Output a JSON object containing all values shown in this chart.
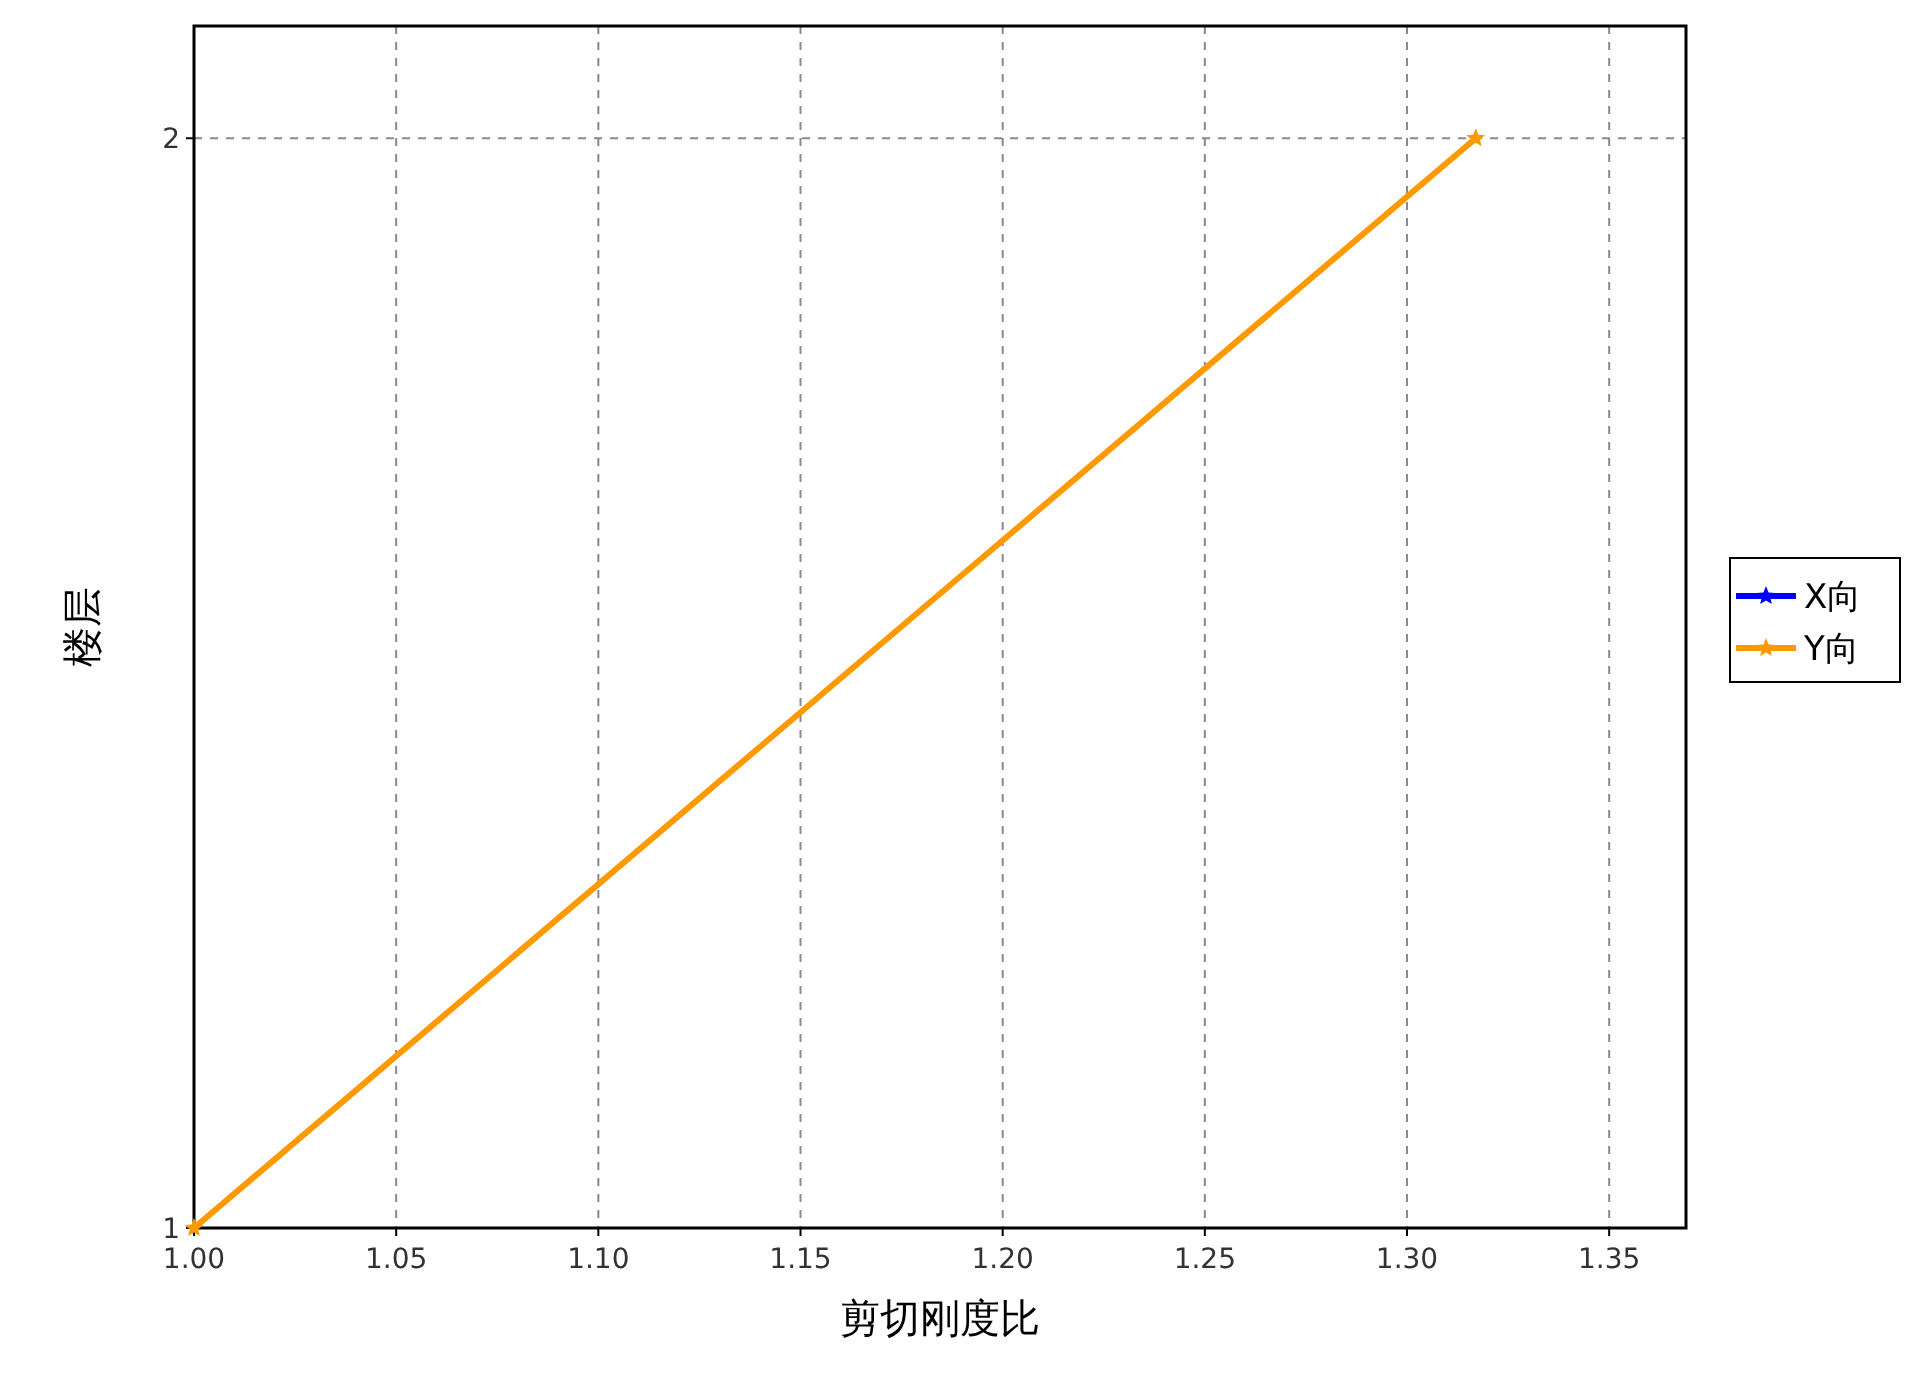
{
  "chart_data": {
    "type": "line",
    "xlabel": "剪切刚度比",
    "ylabel": "楼层",
    "x": [
      1.0,
      1.317
    ],
    "series": [
      {
        "name": "X向",
        "color": "#0000ff",
        "values": [
          null,
          null
        ]
      },
      {
        "name": "Y向",
        "color": "#ff9900",
        "values": [
          1,
          2
        ]
      }
    ],
    "xlim": [
      1.0,
      1.369
    ],
    "xticks": [
      {
        "value": 1.0,
        "label": "1.00"
      },
      1.05,
      {
        "value": 1.1,
        "label": "1.10"
      },
      1.15,
      {
        "value": 1.2,
        "label": "1.20"
      },
      1.25,
      {
        "value": 1.3,
        "label": "1.30"
      },
      1.35
    ],
    "ylim": [
      1,
      2.103
    ],
    "yticks": [
      1,
      2
    ],
    "grid": true,
    "legend": "right",
    "marker": "star",
    "line_style": "solid"
  }
}
